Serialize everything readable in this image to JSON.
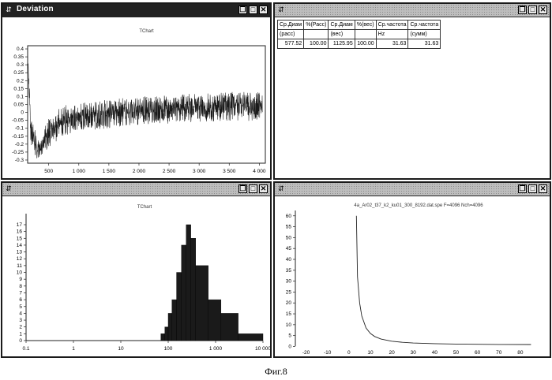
{
  "windows": {
    "deviation": {
      "title": "Deviation",
      "chart_title": "TChart"
    },
    "table": {
      "headers": [
        "Ср.Диам",
        "%(Расс)",
        "Ср.Диам",
        "%(вес)",
        "Ср.частота",
        "Ср.частота"
      ],
      "units": [
        "(расс)",
        "",
        "(вес)",
        "",
        "Hz",
        "(сумм)"
      ],
      "row": [
        "577.52",
        "100.00",
        "1125.95",
        "100.00",
        "31.63",
        "31.63"
      ]
    },
    "histogram": {
      "chart_title": "TChart"
    },
    "spectrum": {
      "chart_title": "4a_Ar02_t37_k2_ku01_300_8192.dat.spe F=4096 Nch=4096"
    }
  },
  "figure_caption": "Фиг.8",
  "chart_data": [
    {
      "type": "line",
      "title": "TChart",
      "x_ticks": [
        "500",
        "1 000",
        "1 500",
        "2 000",
        "2 500",
        "3 000",
        "3 500",
        "4 000"
      ],
      "y_ticks": [
        "0.4",
        "0.35",
        "0.3",
        "0.25",
        "0.2",
        "0.15",
        "0.1",
        "0.05",
        "0",
        "-0.05",
        "-0.1",
        "-0.15",
        "-0.2",
        "-0.25",
        "-0.3"
      ],
      "xlim": [
        150,
        4100
      ],
      "ylim": [
        -0.32,
        0.42
      ],
      "envelope": {
        "x": [
          150,
          200,
          250,
          300,
          350,
          400,
          500,
          700,
          1000,
          1500,
          2000,
          2500,
          3000,
          3500,
          4050
        ],
        "upper": [
          0.4,
          0.05,
          -0.05,
          -0.15,
          -0.2,
          -0.12,
          -0.02,
          0.04,
          0.06,
          0.08,
          0.1,
          0.11,
          0.12,
          0.13,
          0.13
        ],
        "lower": [
          0.28,
          -0.2,
          -0.27,
          -0.29,
          -0.3,
          -0.28,
          -0.22,
          -0.16,
          -0.12,
          -0.1,
          -0.08,
          -0.07,
          -0.06,
          -0.06,
          -0.05
        ]
      }
    },
    {
      "type": "bar",
      "title": "TChart",
      "xscale": "log",
      "x_ticks": [
        "0.1",
        "1",
        "10",
        "100",
        "1 000",
        "10 000"
      ],
      "y_ticks": [
        "0",
        "1",
        "2",
        "3",
        "4",
        "5",
        "6",
        "7",
        "8",
        "9",
        "10",
        "11",
        "12",
        "13",
        "14",
        "15",
        "16",
        "17"
      ],
      "ylim": [
        0,
        17
      ],
      "bins": [
        {
          "x0": 70,
          "x1": 85,
          "value": 1
        },
        {
          "x0": 85,
          "x1": 100,
          "value": 2
        },
        {
          "x0": 100,
          "x1": 120,
          "value": 4
        },
        {
          "x0": 120,
          "x1": 150,
          "value": 6
        },
        {
          "x0": 150,
          "x1": 190,
          "value": 10
        },
        {
          "x0": 190,
          "x1": 240,
          "value": 14
        },
        {
          "x0": 240,
          "x1": 300,
          "value": 17
        },
        {
          "x0": 300,
          "x1": 380,
          "value": 15
        },
        {
          "x0": 380,
          "x1": 700,
          "value": 11
        },
        {
          "x0": 700,
          "x1": 1300,
          "value": 6
        },
        {
          "x0": 1300,
          "x1": 3000,
          "value": 4
        },
        {
          "x0": 3000,
          "x1": 10000,
          "value": 1
        }
      ]
    },
    {
      "type": "line",
      "title": "4a_Ar02_t37_k2_ku01_300_8192.dat.spe F=4096 Nch=4096",
      "x_ticks": [
        "-20",
        "-10",
        "0",
        "10",
        "20",
        "30",
        "40",
        "50",
        "60",
        "70",
        "80"
      ],
      "y_ticks": [
        "0",
        "5",
        "10",
        "15",
        "20",
        "25",
        "30",
        "35",
        "40",
        "45",
        "50",
        "55",
        "60"
      ],
      "xlim": [
        -25,
        90
      ],
      "ylim": [
        -2,
        61
      ],
      "series": [
        {
          "x": [
            3.5,
            4,
            5,
            6,
            8,
            10,
            12,
            15,
            20,
            25,
            30,
            40,
            50,
            60,
            70,
            85
          ],
          "y": [
            60,
            32,
            20,
            14,
            8.5,
            6,
            4.6,
            3.4,
            2.4,
            1.9,
            1.6,
            1.3,
            1.1,
            1.0,
            0.95,
            0.9
          ]
        }
      ]
    }
  ]
}
